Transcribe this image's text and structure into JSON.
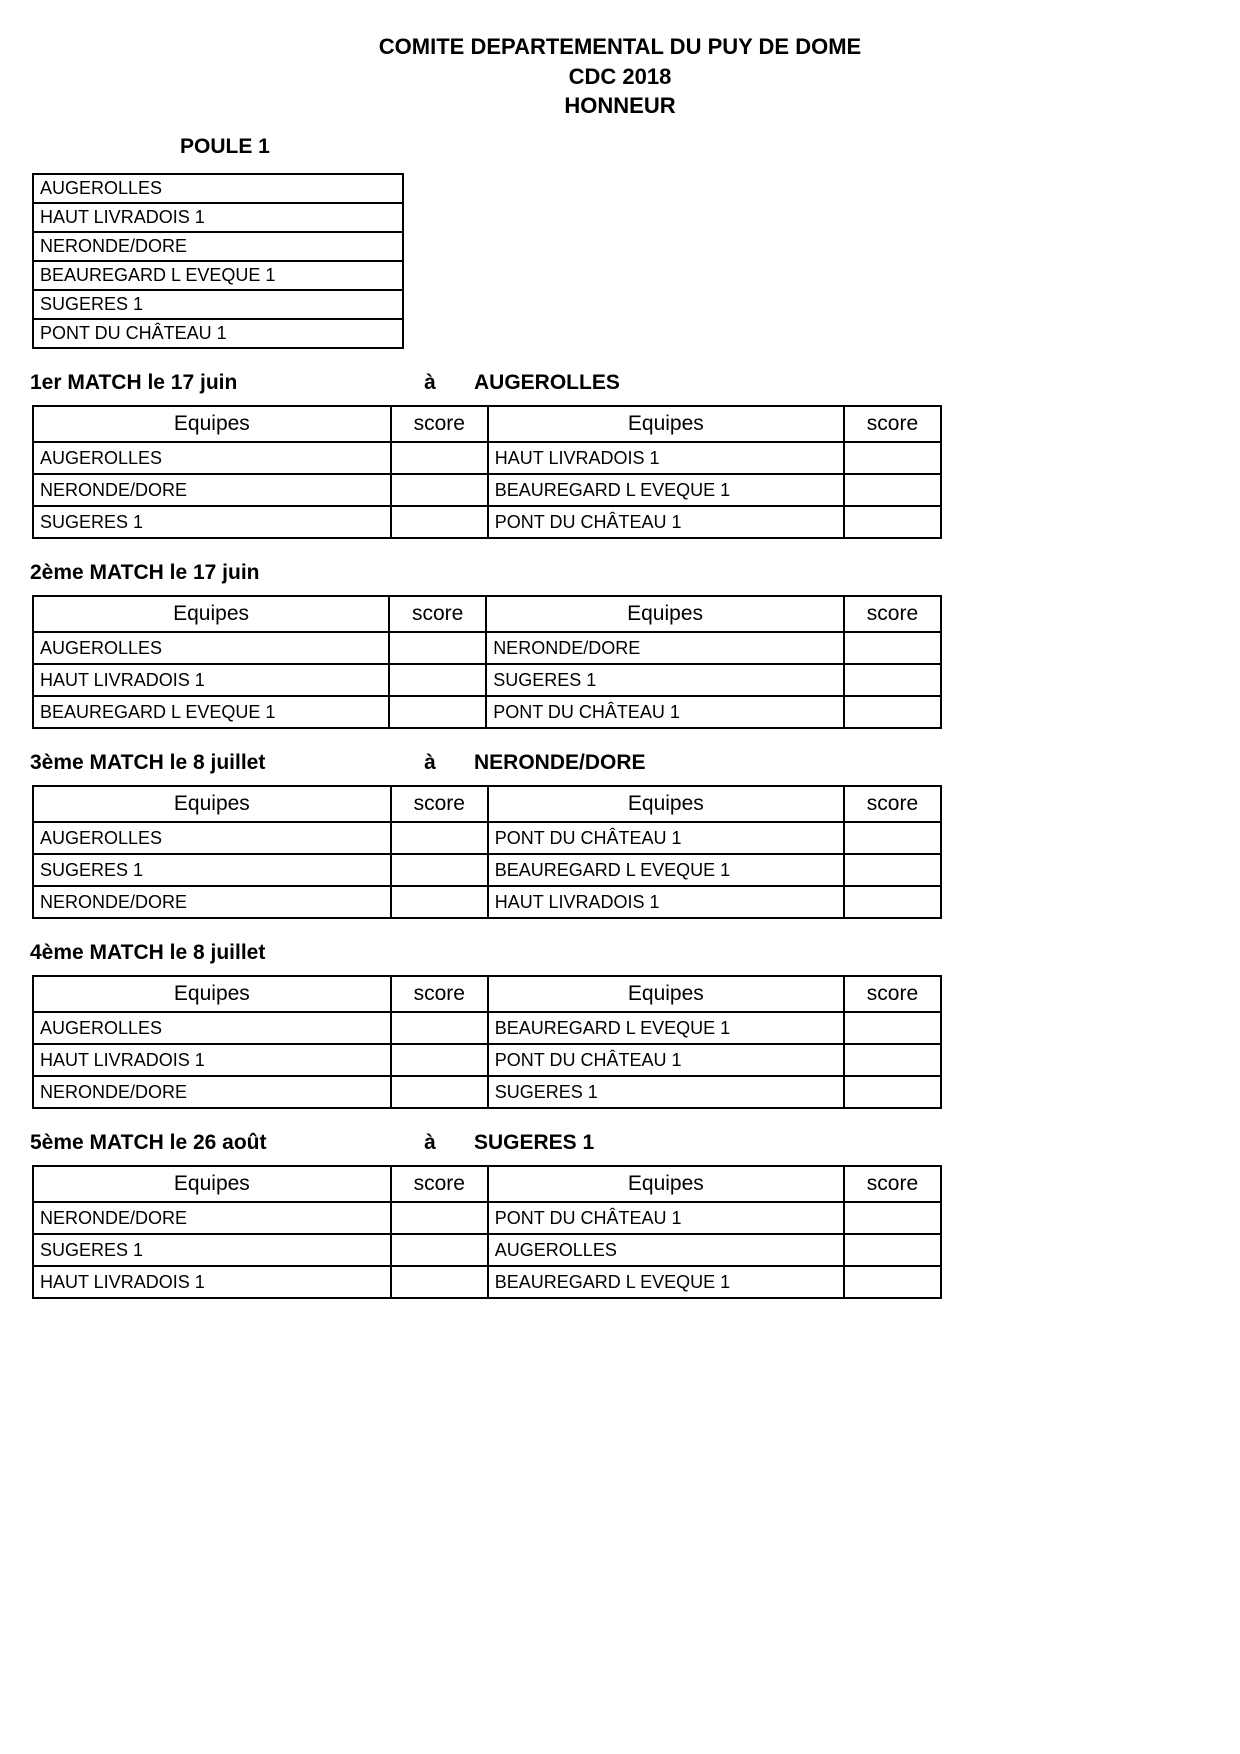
{
  "header": {
    "line1": "COMITE DEPARTEMENTAL DU PUY DE DOME",
    "line2": "CDC 2018",
    "line3": "HONNEUR"
  },
  "poule_label": "POULE 1",
  "teams": [
    "AUGEROLLES",
    "HAUT LIVRADOIS 1",
    "NERONDE/DORE",
    "BEAUREGARD L EVEQUE 1",
    "SUGERES 1",
    "PONT DU CHÂTEAU 1"
  ],
  "table_headers": {
    "equipes": "Equipes",
    "score": "score"
  },
  "location_word": "à",
  "matches": [
    {
      "title": "1er MATCH le 17 juin",
      "location": "AUGEROLLES",
      "rows": [
        {
          "left": "AUGEROLLES",
          "score1": "",
          "right": "HAUT LIVRADOIS 1",
          "score2": ""
        },
        {
          "left": "NERONDE/DORE",
          "score1": "",
          "right": "BEAUREGARD L EVEQUE 1",
          "score2": ""
        },
        {
          "left": "SUGERES 1",
          "score1": "",
          "right": "PONT DU CHÂTEAU 1",
          "score2": ""
        }
      ]
    },
    {
      "title": "2ème MATCH le 17 juin",
      "location": "",
      "rows": [
        {
          "left": "AUGEROLLES",
          "score1": "",
          "right": "NERONDE/DORE",
          "score2": ""
        },
        {
          "left": "HAUT LIVRADOIS 1",
          "score1": "",
          "right": "SUGERES 1",
          "score2": ""
        },
        {
          "left": "BEAUREGARD L EVEQUE 1",
          "score1": "",
          "right": "PONT DU CHÂTEAU 1",
          "score2": ""
        }
      ]
    },
    {
      "title": "3ème MATCH le 8 juillet",
      "location": "NERONDE/DORE",
      "rows": [
        {
          "left": "AUGEROLLES",
          "score1": "",
          "right": "PONT DU CHÂTEAU 1",
          "score2": ""
        },
        {
          "left": "SUGERES 1",
          "score1": "",
          "right": "BEAUREGARD L EVEQUE 1",
          "score2": ""
        },
        {
          "left": "NERONDE/DORE",
          "score1": "",
          "right": "HAUT LIVRADOIS 1",
          "score2": ""
        }
      ]
    },
    {
      "title": "4ème MATCH le 8 juillet",
      "location": "",
      "rows": [
        {
          "left": "AUGEROLLES",
          "score1": "",
          "right": "BEAUREGARD L EVEQUE 1",
          "score2": ""
        },
        {
          "left": "HAUT LIVRADOIS 1",
          "score1": "",
          "right": "PONT DU CHÂTEAU 1",
          "score2": ""
        },
        {
          "left": "NERONDE/DORE",
          "score1": "",
          "right": "SUGERES 1",
          "score2": ""
        }
      ]
    },
    {
      "title": "5ème MATCH le 26 août",
      "location": "SUGERES 1",
      "rows": [
        {
          "left": "NERONDE/DORE",
          "score1": "",
          "right": "PONT DU CHÂTEAU 1",
          "score2": ""
        },
        {
          "left": "SUGERES 1",
          "score1": "",
          "right": "AUGEROLLES",
          "score2": ""
        },
        {
          "left": "HAUT LIVRADOIS 1",
          "score1": "",
          "right": "BEAUREGARD L EVEQUE 1",
          "score2": ""
        }
      ]
    }
  ]
}
